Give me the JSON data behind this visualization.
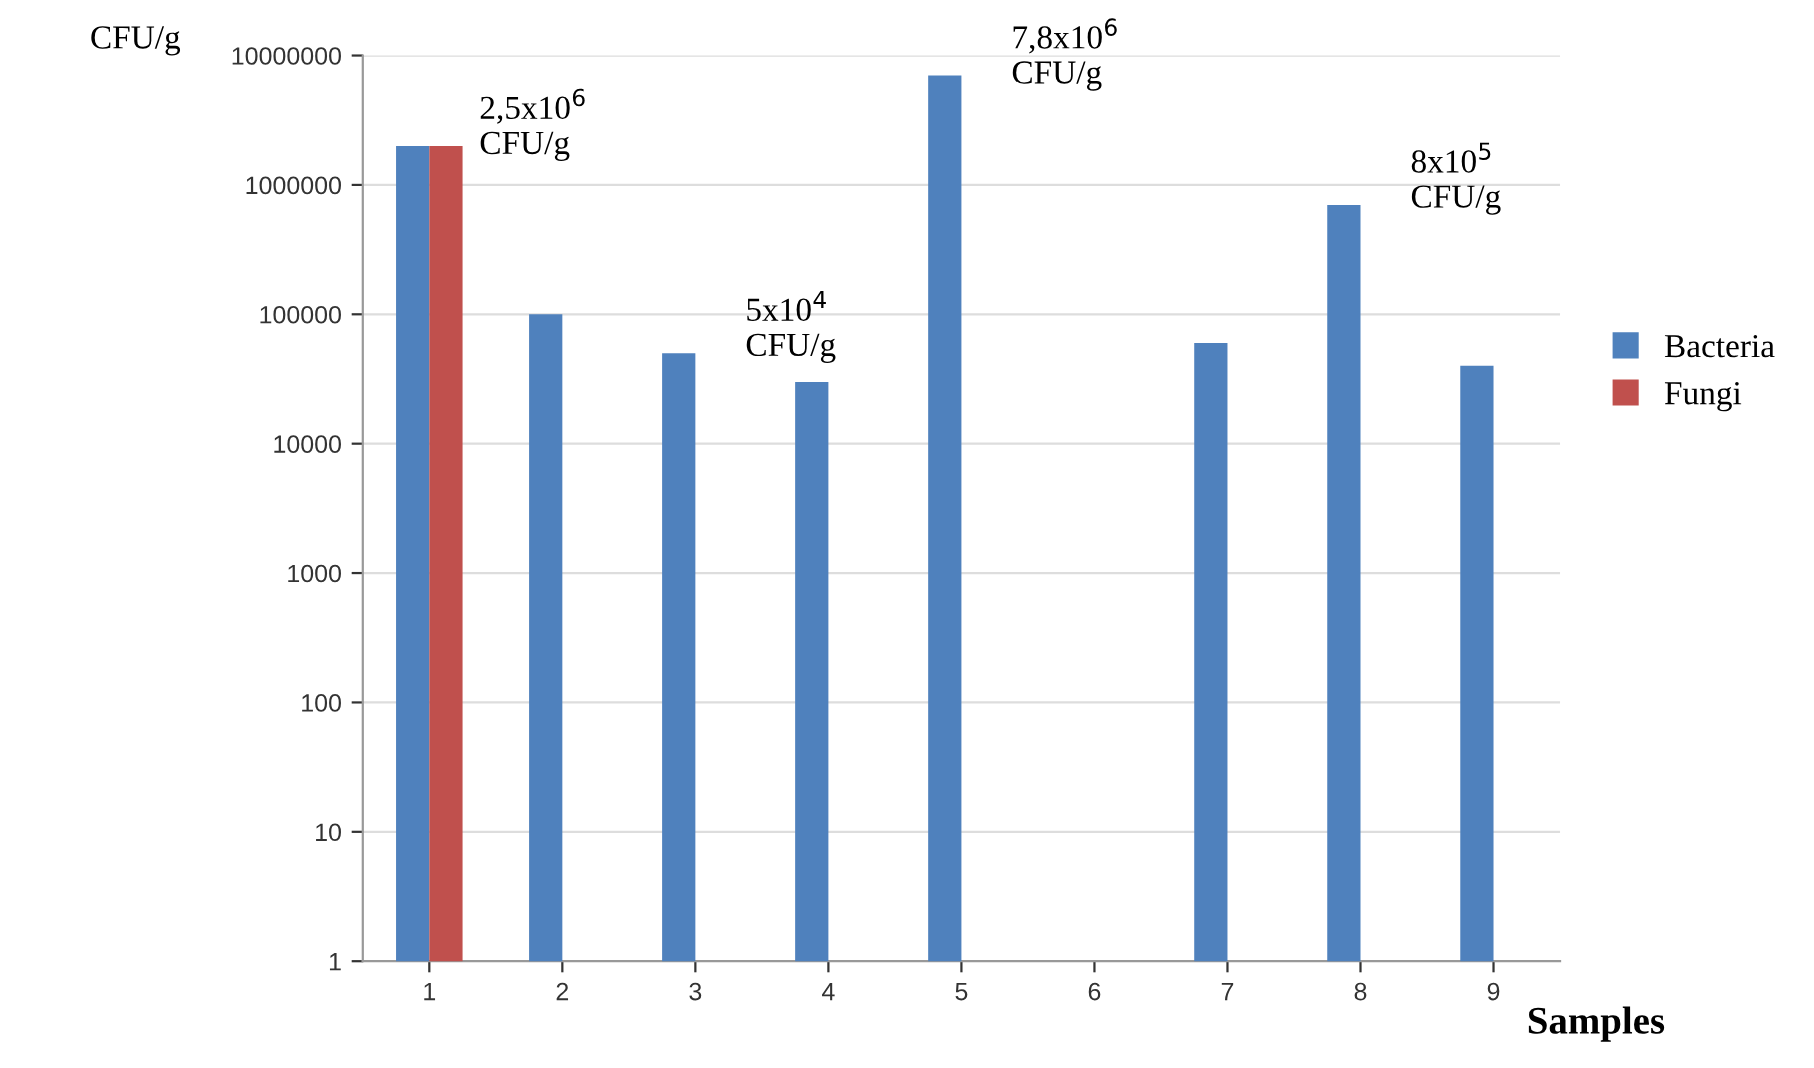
{
  "chart_data": {
    "type": "bar",
    "ylabel": "CFU/g",
    "xlabel": "Samples",
    "categories": [
      "1",
      "2",
      "3",
      "4",
      "5",
      "6",
      "7",
      "8",
      "9"
    ],
    "series": [
      {
        "name": "Bacteria",
        "color": "#4f81bd",
        "values": [
          2000000,
          100000,
          50000,
          30000,
          7000000,
          null,
          60000,
          700000,
          40000
        ]
      },
      {
        "name": "Fungi",
        "color": "#c0504d",
        "values": [
          2000000,
          null,
          null,
          null,
          null,
          null,
          null,
          null,
          null
        ]
      }
    ],
    "log": true,
    "ylim": [
      1,
      10000000
    ],
    "yticks": [
      1,
      10,
      100,
      1000,
      10000,
      100000,
      1000000,
      10000000
    ],
    "grid": "y",
    "legend": "right",
    "annotations": [
      {
        "text": "2,5x10$^{6}$\nCFU/g",
        "x": "1",
        "y": 2000000
      },
      {
        "text": "5x10$^{4}$\nCFU/g",
        "x": "3",
        "y": 50000
      },
      {
        "text": "7,8x10$^{6}$\nCFU/g",
        "x": "5",
        "y": 7000000
      },
      {
        "text": "8x10$^{5}$\nCFU/g",
        "x": "8",
        "y": 700000
      }
    ]
  }
}
